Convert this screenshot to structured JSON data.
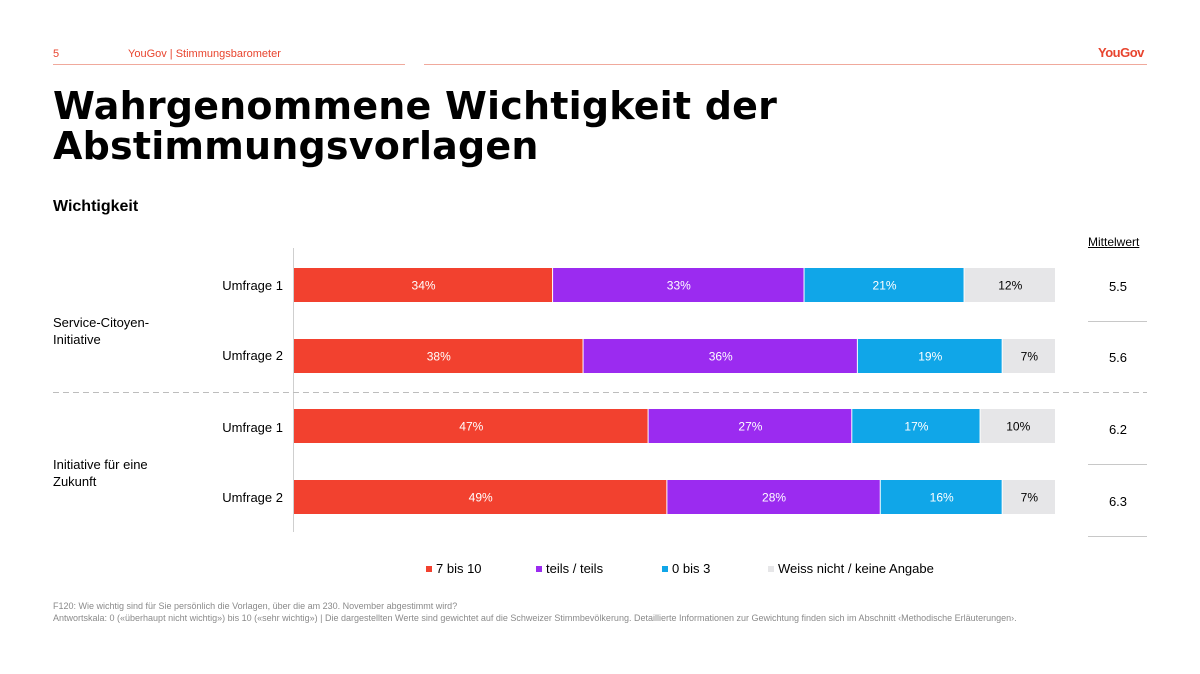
{
  "header": {
    "page_number": "5",
    "title": "YouGov | Stimmungsbarometer",
    "logo": "YouGov"
  },
  "main_title_line1": "Wahrgenommene Wichtigkeit der",
  "main_title_line2": "Abstimmungsvorlagen",
  "subtitle": "Wichtigkeit",
  "colors": {
    "accent": "#e8442e",
    "high": "#f2412f",
    "mid": "#9b2bf0",
    "low": "#10a6e8",
    "none": "#e6e6e8"
  },
  "chart_data": {
    "type": "bar",
    "orientation": "horizontal-stacked-100",
    "title": "Wichtigkeit",
    "legend_position": "bottom",
    "legend": [
      "7 bis 10",
      "teils / teils",
      "0 bis 3",
      "Weiss nicht / keine Angabe"
    ],
    "groups": [
      {
        "name_line1": "Service-Citoyen-",
        "name_line2": "Initiative",
        "rows": [
          {
            "label": "Umfrage 1",
            "values": [
              34,
              33,
              21,
              12
            ],
            "labels": [
              "34%",
              "33%",
              "21%",
              "12%"
            ],
            "mean": "5.5"
          },
          {
            "label": "Umfrage 2",
            "values": [
              38,
              36,
              19,
              7
            ],
            "labels": [
              "38%",
              "36%",
              "19%",
              "7%"
            ],
            "mean": "5.6"
          }
        ]
      },
      {
        "name_line1": "Initiative für eine",
        "name_line2": "Zukunft",
        "rows": [
          {
            "label": "Umfrage 1",
            "values": [
              47,
              27,
              17,
              10
            ],
            "labels": [
              "47%",
              "27%",
              "17%",
              "10%"
            ],
            "mean": "6.2"
          },
          {
            "label": "Umfrage 2",
            "values": [
              49,
              28,
              16,
              7
            ],
            "labels": [
              "49%",
              "28%",
              "16%",
              "7%"
            ],
            "mean": "6.3"
          }
        ]
      }
    ],
    "mean_header": "Mittelwert",
    "xlim": [
      0,
      100
    ]
  },
  "footnote": {
    "line1": "F120: Wie wichtig sind für Sie persönlich die Vorlagen, über die am 230. November abgestimmt wird?",
    "line2": "Antwortskala: 0 («überhaupt nicht wichtig») bis 10 («sehr wichtig») | Die dargestellten Werte sind gewichtet auf die Schweizer Stimmbevölkerung. Detaillierte Informationen zur Gewichtung finden sich im Abschnitt ‹Methodische Erläuterungen›."
  }
}
